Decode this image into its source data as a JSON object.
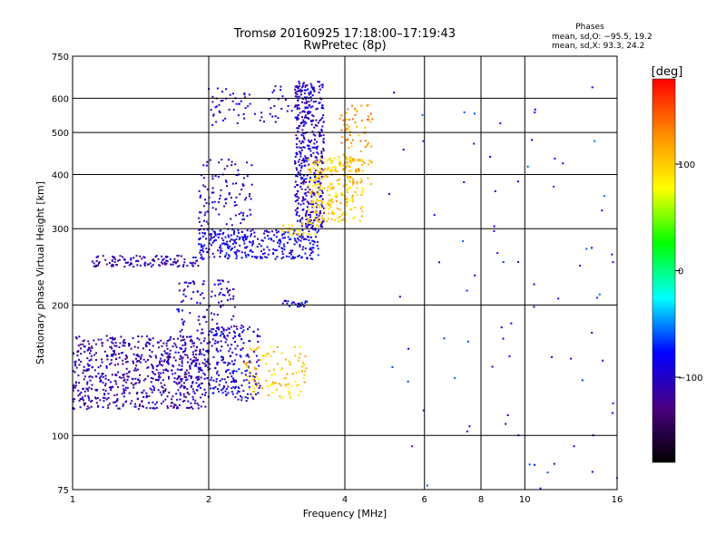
{
  "chart_data": {
    "type": "scatter",
    "title": "Tromsø 20160925 17:18:00–17:19:43",
    "subtitle": "RwPretec (8p)",
    "xlabel": "Frequency [MHz]",
    "ylabel": "Stationary phase Virtual Height [km]",
    "x_scale": "log",
    "y_scale": "log",
    "xlim": [
      1,
      16
    ],
    "ylim": [
      75,
      750
    ],
    "x_ticks": [
      1,
      2,
      4,
      6,
      8,
      10,
      16
    ],
    "x_tick_labels": [
      "1",
      "2",
      "4",
      "6",
      "8",
      "10",
      "16"
    ],
    "y_ticks": [
      75,
      100,
      200,
      300,
      400,
      500,
      600,
      750
    ],
    "y_tick_labels": [
      "75",
      "100",
      "200",
      "300",
      "400",
      "500",
      "600",
      "750"
    ],
    "grid": true,
    "stats": {
      "heading": "Phases",
      "o_line": "mean, sd,O: −95.5, 19.2",
      "x_line": "mean, sd,X:  93.3, 24.2"
    },
    "colorbar": {
      "label": "[deg]",
      "range": [
        -180,
        180
      ],
      "ticks": [
        100,
        0,
        -100
      ],
      "tick_labels": [
        "100",
        "0",
        "−100"
      ],
      "stops": [
        "#000000",
        "#4b0082",
        "#0000ff",
        "#00ffff",
        "#00ff00",
        "#ffff00",
        "#ff8c00",
        "#ff0000"
      ]
    },
    "clusters": [
      {
        "name": "low",
        "n": 700,
        "xr": [
          1.0,
          2.0
        ],
        "yr": [
          115,
          170
        ],
        "phase": -110
      },
      {
        "name": "low-streaks",
        "n": 180,
        "xr": [
          1.7,
          2.3
        ],
        "yr": [
          125,
          230
        ],
        "phase": -100
      },
      {
        "name": "low-mid",
        "n": 180,
        "xr": [
          2.0,
          2.6
        ],
        "yr": [
          120,
          180
        ],
        "phase": -95
      },
      {
        "name": "low-yellow",
        "n": 110,
        "xr": [
          2.4,
          3.3
        ],
        "yr": [
          122,
          160
        ],
        "phase": 100
      },
      {
        "name": "e-trace",
        "n": 25,
        "xr": [
          2.9,
          3.3
        ],
        "yr": [
          198,
          205
        ],
        "phase": -90
      },
      {
        "name": "f-band",
        "n": 120,
        "xr": [
          1.1,
          1.9
        ],
        "yr": [
          245,
          260
        ],
        "phase": -110
      },
      {
        "name": "f-lower",
        "n": 300,
        "xr": [
          1.9,
          3.5
        ],
        "yr": [
          255,
          300
        ],
        "phase": -90
      },
      {
        "name": "f-streaks",
        "n": 120,
        "xr": [
          1.9,
          2.5
        ],
        "yr": [
          280,
          440
        ],
        "phase": -100
      },
      {
        "name": "upper-trace",
        "n": 90,
        "xr": [
          2.0,
          3.4
        ],
        "yr": [
          520,
          640
        ],
        "phase": -100
      },
      {
        "name": "cusp",
        "n": 420,
        "xr": [
          3.1,
          3.6
        ],
        "yr": [
          300,
          660
        ],
        "phase": -100
      },
      {
        "name": "x-yellow",
        "n": 260,
        "xr": [
          3.3,
          4.4
        ],
        "yr": [
          310,
          440
        ],
        "phase": 100
      },
      {
        "name": "x-upper",
        "n": 90,
        "xr": [
          3.9,
          4.6
        ],
        "yr": [
          380,
          580
        ],
        "phase": 120
      },
      {
        "name": "x-low",
        "n": 30,
        "xr": [
          2.9,
          3.5
        ],
        "yr": [
          290,
          310
        ],
        "phase": 90
      },
      {
        "name": "sparse-right",
        "n": 80,
        "xr": [
          5.0,
          16.0
        ],
        "yr": [
          75,
          640
        ],
        "phase": -80
      }
    ]
  }
}
